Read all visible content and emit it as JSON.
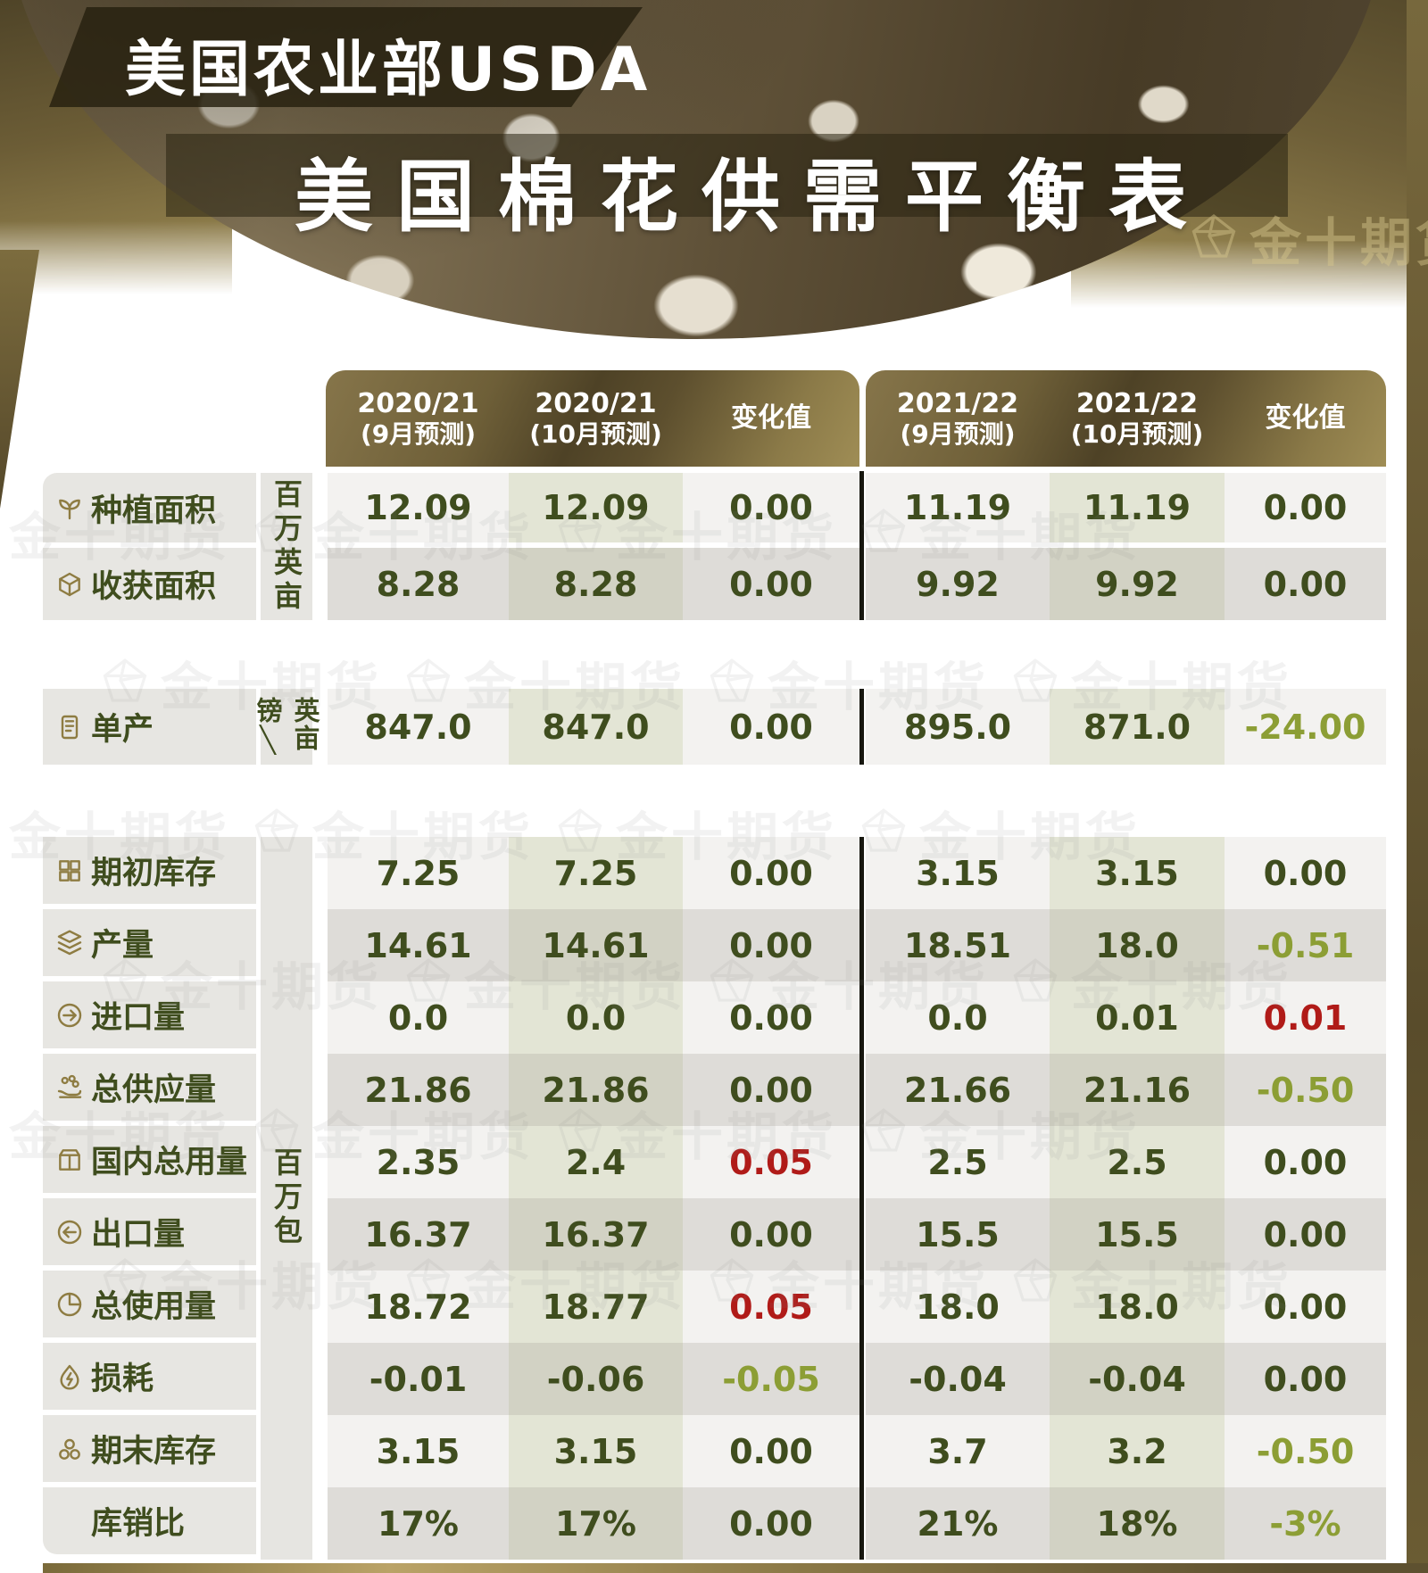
{
  "header": {
    "agency_banner": "美国农业部USDA",
    "main_title": "美国棉花供需平衡表"
  },
  "watermark": {
    "brand": "金十期货"
  },
  "chart_data": {
    "type": "table",
    "title": "美国棉花供需平衡表",
    "source": "美国农业部USDA",
    "columns": [
      {
        "line1": "2020/21",
        "line2": "(9月预测)"
      },
      {
        "line1": "2020/21",
        "line2": "(10月预测)"
      },
      {
        "line1": "变化值",
        "line2": ""
      },
      {
        "line1": "2021/22",
        "line2": "(9月预测)"
      },
      {
        "line1": "2021/22",
        "line2": "(10月预测)"
      },
      {
        "line1": "变化值",
        "line2": ""
      }
    ],
    "blocks": [
      {
        "unit": "百万英亩",
        "rows": [
          {
            "icon": "seedling-icon",
            "label": "种植面积",
            "values": [
              {
                "v": "12.09"
              },
              {
                "v": "12.09"
              },
              {
                "v": "0.00"
              },
              {
                "v": "11.19"
              },
              {
                "v": "11.19"
              },
              {
                "v": "0.00"
              }
            ]
          },
          {
            "icon": "harvest-icon",
            "label": "收获面积",
            "values": [
              {
                "v": "8.28"
              },
              {
                "v": "8.28"
              },
              {
                "v": "0.00"
              },
              {
                "v": "9.92"
              },
              {
                "v": "9.92"
              },
              {
                "v": "0.00"
              }
            ]
          }
        ]
      },
      {
        "unit": "镑\\英亩",
        "rows": [
          {
            "icon": "yield-icon",
            "label": "单产",
            "values": [
              {
                "v": "847.0"
              },
              {
                "v": "847.0"
              },
              {
                "v": "0.00"
              },
              {
                "v": "895.0"
              },
              {
                "v": "871.0"
              },
              {
                "v": "-24.00",
                "tone": "olive"
              }
            ]
          }
        ]
      },
      {
        "unit": "百万包",
        "rows": [
          {
            "icon": "beginning-stocks-icon",
            "label": "期初库存",
            "values": [
              {
                "v": "7.25"
              },
              {
                "v": "7.25"
              },
              {
                "v": "0.00"
              },
              {
                "v": "3.15"
              },
              {
                "v": "3.15"
              },
              {
                "v": "0.00"
              }
            ]
          },
          {
            "icon": "production-icon",
            "label": "产量",
            "values": [
              {
                "v": "14.61"
              },
              {
                "v": "14.61"
              },
              {
                "v": "0.00"
              },
              {
                "v": "18.51"
              },
              {
                "v": "18.0"
              },
              {
                "v": "-0.51",
                "tone": "olive"
              }
            ]
          },
          {
            "icon": "imports-icon",
            "label": "进口量",
            "values": [
              {
                "v": "0.0"
              },
              {
                "v": "0.0"
              },
              {
                "v": "0.00"
              },
              {
                "v": "0.0"
              },
              {
                "v": "0.01"
              },
              {
                "v": "0.01",
                "tone": "red"
              }
            ]
          },
          {
            "icon": "total-supply-icon",
            "label": "总供应量",
            "values": [
              {
                "v": "21.86"
              },
              {
                "v": "21.86"
              },
              {
                "v": "0.00"
              },
              {
                "v": "21.66"
              },
              {
                "v": "21.16"
              },
              {
                "v": "-0.50",
                "tone": "olive"
              }
            ]
          },
          {
            "icon": "domestic-use-icon",
            "label": "国内总用量",
            "values": [
              {
                "v": "2.35"
              },
              {
                "v": "2.4"
              },
              {
                "v": "0.05",
                "tone": "red"
              },
              {
                "v": "2.5"
              },
              {
                "v": "2.5"
              },
              {
                "v": "0.00"
              }
            ]
          },
          {
            "icon": "exports-icon",
            "label": "出口量",
            "values": [
              {
                "v": "16.37"
              },
              {
                "v": "16.37"
              },
              {
                "v": "0.00"
              },
              {
                "v": "15.5"
              },
              {
                "v": "15.5"
              },
              {
                "v": "0.00"
              }
            ]
          },
          {
            "icon": "total-use-icon",
            "label": "总使用量",
            "values": [
              {
                "v": "18.72"
              },
              {
                "v": "18.77"
              },
              {
                "v": "0.05",
                "tone": "red"
              },
              {
                "v": "18.0"
              },
              {
                "v": "18.0"
              },
              {
                "v": "0.00"
              }
            ]
          },
          {
            "icon": "loss-icon",
            "label": "损耗",
            "values": [
              {
                "v": "-0.01"
              },
              {
                "v": "-0.06"
              },
              {
                "v": "-0.05",
                "tone": "olive"
              },
              {
                "v": "-0.04"
              },
              {
                "v": "-0.04"
              },
              {
                "v": "0.00"
              }
            ]
          },
          {
            "icon": "ending-stocks-icon",
            "label": "期末库存",
            "values": [
              {
                "v": "3.15"
              },
              {
                "v": "3.15"
              },
              {
                "v": "0.00"
              },
              {
                "v": "3.7"
              },
              {
                "v": "3.2"
              },
              {
                "v": "-0.50",
                "tone": "olive"
              }
            ]
          },
          {
            "icon": "",
            "label": "库销比",
            "values": [
              {
                "v": "17%"
              },
              {
                "v": "17%"
              },
              {
                "v": "0.00"
              },
              {
                "v": "21%"
              },
              {
                "v": "18%"
              },
              {
                "v": "-3%",
                "tone": "olive"
              }
            ]
          }
        ]
      }
    ]
  }
}
